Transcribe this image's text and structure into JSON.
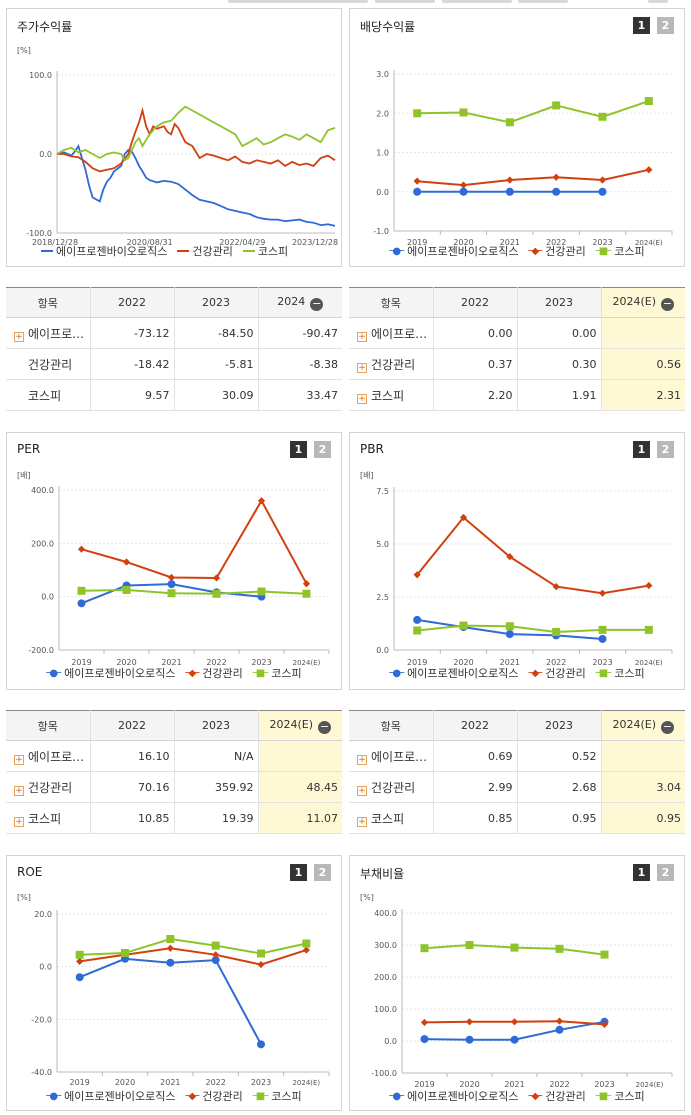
{
  "colors": {
    "blue": "#2f6ad6",
    "red": "#d2400f",
    "green": "#8ec42a"
  },
  "toggle": {
    "one": "1",
    "two": "2"
  },
  "panels": {
    "stock": {
      "title": "주가수익률",
      "unit": "[%]",
      "legend": [
        "에이프로젠바이오로직스",
        "건강관리",
        "코스피"
      ]
    },
    "dividend": {
      "title": "배당수익률",
      "legend": [
        "에이프로젠바이오로직스",
        "건강관리",
        "코스피"
      ]
    },
    "per": {
      "title": "PER",
      "unit": "[배]",
      "legend": [
        "에이프로젠바이오로직스",
        "건강관리",
        "코스피"
      ]
    },
    "pbr": {
      "title": "PBR",
      "unit": "[배]",
      "legend": [
        "에이프로젠바이오로직스",
        "건강관리",
        "코스피"
      ]
    },
    "roe": {
      "title": "ROE",
      "unit": "[%]",
      "legend": [
        "에이프로젠바이오로직스",
        "건강관리",
        "코스피"
      ]
    },
    "debt": {
      "title": "부채비율",
      "unit": "[%]",
      "legend": [
        "에이프로젠바이오로직스",
        "건강관리",
        "코스피"
      ]
    }
  },
  "tables": {
    "stock": {
      "headers": [
        "항목",
        "2022",
        "2023",
        "2024"
      ],
      "rows": [
        {
          "name": "에이프로…",
          "v": [
            "-73.12",
            "-84.50",
            "-90.47"
          ],
          "plus": true
        },
        {
          "name": "건강관리",
          "v": [
            "-18.42",
            "-5.81",
            "-8.38"
          ],
          "plus": false
        },
        {
          "name": "코스피",
          "v": [
            "9.57",
            "30.09",
            "33.47"
          ],
          "plus": false
        }
      ]
    },
    "dividend": {
      "headers": [
        "항목",
        "2022",
        "2023",
        "2024(E)"
      ],
      "rows": [
        {
          "name": "에이프로…",
          "v": [
            "0.00",
            "0.00",
            ""
          ],
          "plus": true
        },
        {
          "name": "건강관리",
          "v": [
            "0.37",
            "0.30",
            "0.56"
          ],
          "plus": true
        },
        {
          "name": "코스피",
          "v": [
            "2.20",
            "1.91",
            "2.31"
          ],
          "plus": true
        }
      ]
    },
    "per": {
      "headers": [
        "항목",
        "2022",
        "2023",
        "2024(E)"
      ],
      "rows": [
        {
          "name": "에이프로…",
          "v": [
            "16.10",
            "N/A",
            ""
          ],
          "plus": true
        },
        {
          "name": "건강관리",
          "v": [
            "70.16",
            "359.92",
            "48.45"
          ],
          "plus": true
        },
        {
          "name": "코스피",
          "v": [
            "10.85",
            "19.39",
            "11.07"
          ],
          "plus": true
        }
      ]
    },
    "pbr": {
      "headers": [
        "항목",
        "2022",
        "2023",
        "2024(E)"
      ],
      "rows": [
        {
          "name": "에이프로…",
          "v": [
            "0.69",
            "0.52",
            ""
          ],
          "plus": true
        },
        {
          "name": "건강관리",
          "v": [
            "2.99",
            "2.68",
            "3.04"
          ],
          "plus": true
        },
        {
          "name": "코스피",
          "v": [
            "0.85",
            "0.95",
            "0.95"
          ],
          "plus": true
        }
      ]
    }
  },
  "chart_data": [
    {
      "id": "stock",
      "type": "line",
      "title": "주가수익률",
      "ylabel": "[%]",
      "ylim": [
        -100,
        100
      ],
      "yticks": [
        "100.0",
        "0.0",
        "-100.0"
      ],
      "x_ticks": [
        "2018/12/28",
        "2020/08/31",
        "2022/04/29",
        "2023/12/28"
      ],
      "x_range": [
        "2018-12-28",
        "2023-12-28"
      ],
      "series": [
        {
          "name": "에이프로젠바이오로직스",
          "color_key": "blue",
          "points": [
            [
              0,
              0
            ],
            [
              2,
              2
            ],
            [
              4,
              -2
            ],
            [
              5,
              3
            ],
            [
              6,
              10
            ],
            [
              7,
              -5
            ],
            [
              8,
              -20
            ],
            [
              9,
              -40
            ],
            [
              10,
              -55
            ],
            [
              12,
              -60
            ],
            [
              13,
              -45
            ],
            [
              14,
              -35
            ],
            [
              15,
              -30
            ],
            [
              16,
              -22
            ],
            [
              18,
              -15
            ],
            [
              19,
              0
            ],
            [
              20,
              5
            ],
            [
              21,
              3
            ],
            [
              22,
              -5
            ],
            [
              23,
              -15
            ],
            [
              24,
              -22
            ],
            [
              25,
              -30
            ],
            [
              26,
              -33
            ],
            [
              28,
              -36
            ],
            [
              30,
              -34
            ],
            [
              32,
              -35
            ],
            [
              34,
              -38
            ],
            [
              36,
              -45
            ],
            [
              38,
              -52
            ],
            [
              40,
              -58
            ],
            [
              42,
              -60
            ],
            [
              44,
              -62
            ],
            [
              46,
              -66
            ],
            [
              48,
              -70
            ],
            [
              50,
              -72
            ],
            [
              52,
              -74
            ],
            [
              54,
              -76
            ],
            [
              56,
              -80
            ],
            [
              58,
              -82
            ],
            [
              60,
              -83
            ],
            [
              62,
              -83
            ],
            [
              64,
              -85
            ],
            [
              66,
              -84
            ],
            [
              68,
              -83
            ],
            [
              70,
              -86
            ],
            [
              72,
              -87
            ],
            [
              74,
              -90
            ],
            [
              76,
              -89
            ],
            [
              78,
              -91
            ]
          ]
        },
        {
          "name": "건강관리",
          "color_key": "red",
          "points": [
            [
              0,
              0
            ],
            [
              2,
              0
            ],
            [
              4,
              -3
            ],
            [
              6,
              -4
            ],
            [
              8,
              -10
            ],
            [
              10,
              -18
            ],
            [
              12,
              -22
            ],
            [
              14,
              -20
            ],
            [
              16,
              -18
            ],
            [
              18,
              -12
            ],
            [
              20,
              0
            ],
            [
              21,
              15
            ],
            [
              22,
              28
            ],
            [
              23,
              40
            ],
            [
              24,
              55
            ],
            [
              25,
              35
            ],
            [
              26,
              25
            ],
            [
              27,
              35
            ],
            [
              28,
              32
            ],
            [
              30,
              35
            ],
            [
              31,
              28
            ],
            [
              32,
              25
            ],
            [
              33,
              38
            ],
            [
              34,
              33
            ],
            [
              36,
              15
            ],
            [
              38,
              10
            ],
            [
              40,
              -5
            ],
            [
              42,
              0
            ],
            [
              44,
              -2
            ],
            [
              46,
              -5
            ],
            [
              48,
              -8
            ],
            [
              50,
              -3
            ],
            [
              52,
              -10
            ],
            [
              54,
              -12
            ],
            [
              56,
              -8
            ],
            [
              58,
              -10
            ],
            [
              60,
              -12
            ],
            [
              62,
              -8
            ],
            [
              64,
              -15
            ],
            [
              66,
              -10
            ],
            [
              68,
              -14
            ],
            [
              70,
              -12
            ],
            [
              72,
              -15
            ],
            [
              74,
              -5
            ],
            [
              76,
              -2
            ],
            [
              78,
              -8
            ]
          ]
        },
        {
          "name": "코스피",
          "color_key": "green",
          "points": [
            [
              0,
              0
            ],
            [
              2,
              5
            ],
            [
              4,
              8
            ],
            [
              6,
              2
            ],
            [
              8,
              5
            ],
            [
              10,
              0
            ],
            [
              12,
              -5
            ],
            [
              14,
              0
            ],
            [
              16,
              2
            ],
            [
              18,
              0
            ],
            [
              19,
              -8
            ],
            [
              20,
              -5
            ],
            [
              21,
              5
            ],
            [
              22,
              15
            ],
            [
              23,
              20
            ],
            [
              24,
              10
            ],
            [
              25,
              18
            ],
            [
              26,
              25
            ],
            [
              27,
              30
            ],
            [
              28,
              35
            ],
            [
              30,
              40
            ],
            [
              32,
              42
            ],
            [
              34,
              52
            ],
            [
              36,
              60
            ],
            [
              38,
              55
            ],
            [
              40,
              50
            ],
            [
              42,
              45
            ],
            [
              44,
              40
            ],
            [
              46,
              35
            ],
            [
              48,
              30
            ],
            [
              50,
              25
            ],
            [
              52,
              10
            ],
            [
              54,
              15
            ],
            [
              56,
              20
            ],
            [
              58,
              12
            ],
            [
              60,
              15
            ],
            [
              62,
              20
            ],
            [
              64,
              25
            ],
            [
              66,
              22
            ],
            [
              68,
              18
            ],
            [
              70,
              25
            ],
            [
              72,
              20
            ],
            [
              74,
              15
            ],
            [
              76,
              30
            ],
            [
              78,
              33
            ]
          ]
        }
      ]
    },
    {
      "id": "dividend",
      "type": "line",
      "title": "배당수익률",
      "ylim": [
        -1,
        3
      ],
      "yticks": [
        "3.0",
        "2.0",
        "1.0",
        "0.0",
        "-1.0"
      ],
      "categories": [
        "2019",
        "2020",
        "2021",
        "2022",
        "2023",
        "2024(E)"
      ],
      "series": [
        {
          "name": "에이프로젠바이오로직스",
          "color_key": "blue",
          "marker": "circle",
          "values": [
            0,
            0,
            0,
            0,
            0,
            null
          ]
        },
        {
          "name": "건강관리",
          "color_key": "red",
          "marker": "diamond",
          "values": [
            0.27,
            0.17,
            0.3,
            0.37,
            0.3,
            0.56
          ]
        },
        {
          "name": "코스피",
          "color_key": "green",
          "marker": "square",
          "values": [
            2.0,
            2.02,
            1.77,
            2.2,
            1.91,
            2.31
          ]
        }
      ]
    },
    {
      "id": "per",
      "type": "line",
      "title": "PER",
      "ylabel": "[배]",
      "ylim": [
        -200,
        400
      ],
      "yticks": [
        "400.0",
        "200.0",
        "0.0",
        "-200.0"
      ],
      "categories": [
        "2019",
        "2020",
        "2021",
        "2022",
        "2023",
        "2024(E)"
      ],
      "series": [
        {
          "name": "에이프로젠바이오로직스",
          "color_key": "blue",
          "marker": "circle",
          "values": [
            -25,
            42,
            47,
            16.1,
            0,
            null
          ]
        },
        {
          "name": "건강관리",
          "color_key": "red",
          "marker": "diamond",
          "values": [
            178,
            130,
            72,
            70.16,
            359.92,
            48.45
          ]
        },
        {
          "name": "코스피",
          "color_key": "green",
          "marker": "square",
          "values": [
            22,
            25,
            13,
            10.85,
            19.39,
            11.07
          ]
        }
      ]
    },
    {
      "id": "pbr",
      "type": "line",
      "title": "PBR",
      "ylabel": "[배]",
      "ylim": [
        0,
        7.5
      ],
      "yticks": [
        "7.5",
        "5.0",
        "2.5",
        "0.0"
      ],
      "categories": [
        "2019",
        "2020",
        "2021",
        "2022",
        "2023",
        "2024(E)"
      ],
      "series": [
        {
          "name": "에이프로젠바이오로직스",
          "color_key": "blue",
          "marker": "circle",
          "values": [
            1.42,
            1.08,
            0.75,
            0.69,
            0.52,
            null
          ]
        },
        {
          "name": "건강관리",
          "color_key": "red",
          "marker": "diamond",
          "values": [
            3.55,
            6.25,
            4.4,
            2.99,
            2.68,
            3.04
          ]
        },
        {
          "name": "코스피",
          "color_key": "green",
          "marker": "square",
          "values": [
            0.92,
            1.15,
            1.12,
            0.85,
            0.95,
            0.95
          ]
        }
      ]
    },
    {
      "id": "roe",
      "type": "line",
      "title": "ROE",
      "ylabel": "[%]",
      "ylim": [
        -40,
        20
      ],
      "yticks": [
        "20.0",
        "0.0",
        "-20.0",
        "-40.0"
      ],
      "categories": [
        "2019",
        "2020",
        "2021",
        "2022",
        "2023",
        "2024(E)"
      ],
      "series": [
        {
          "name": "에이프로젠바이오로직스",
          "color_key": "blue",
          "marker": "circle",
          "values": [
            -4.0,
            3.0,
            1.5,
            2.5,
            -29.5,
            null
          ]
        },
        {
          "name": "건강관리",
          "color_key": "red",
          "marker": "diamond",
          "values": [
            2.0,
            4.5,
            7.0,
            4.5,
            0.8,
            6.3
          ]
        },
        {
          "name": "코스피",
          "color_key": "green",
          "marker": "square",
          "values": [
            4.5,
            5.2,
            10.5,
            8.0,
            5.0,
            8.8
          ]
        }
      ]
    },
    {
      "id": "debt",
      "type": "line",
      "title": "부채비율",
      "ylabel": "[%]",
      "ylim": [
        -100,
        400
      ],
      "yticks": [
        "400.0",
        "300.0",
        "200.0",
        "100.0",
        "0.0",
        "-100.0"
      ],
      "categories": [
        "2019",
        "2020",
        "2021",
        "2022",
        "2023",
        "2024(E)"
      ],
      "series": [
        {
          "name": "에이프로젠바이오로직스",
          "color_key": "blue",
          "marker": "circle",
          "values": [
            6,
            4,
            4,
            35,
            60,
            null
          ]
        },
        {
          "name": "건강관리",
          "color_key": "red",
          "marker": "diamond",
          "values": [
            58,
            60,
            60,
            62,
            52,
            null
          ]
        },
        {
          "name": "코스피",
          "color_key": "green",
          "marker": "square",
          "values": [
            290,
            300,
            292,
            288,
            270,
            null
          ]
        }
      ]
    }
  ]
}
